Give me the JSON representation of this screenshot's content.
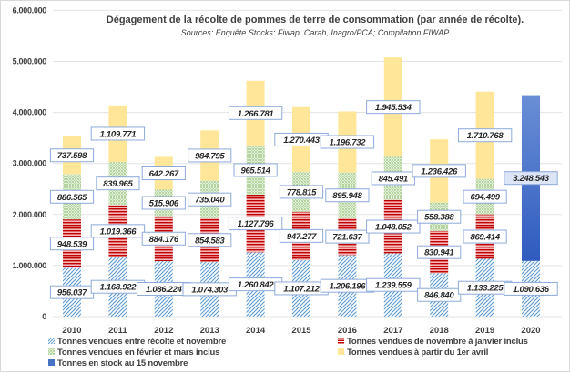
{
  "chart_data": {
    "type": "bar",
    "stacked": true,
    "title": "Dégagement de la récolte de pommes de terre de consommation (par année de récolte).",
    "subtitle": "Sources: Enquête Stocks: Fiwap, Carah, Inagro/PCA; Compilation FIWAP",
    "xlabel": "",
    "ylabel": "",
    "ylim": [
      0,
      6000000
    ],
    "yticks": [
      0,
      1000000,
      2000000,
      3000000,
      4000000,
      5000000,
      6000000
    ],
    "ytick_labels": [
      "0",
      "1.000.000",
      "2.000.000",
      "3.000.000",
      "4.000.000",
      "5.000.000",
      "6.000.000"
    ],
    "grid": true,
    "legend_position": "bottom",
    "categories": [
      "2010",
      "2011",
      "2012",
      "2013",
      "2014",
      "2015",
      "2016",
      "2017",
      "2018",
      "2019",
      "2020"
    ],
    "series": [
      {
        "name": "Tonnes vendues entre récolte et novembre",
        "color": "#5b9bd5",
        "pattern": "diagonal-hatch",
        "values": [
          956037,
          1168922,
          1086224,
          1074303,
          1260842,
          1107212,
          1206196,
          1239559,
          846840,
          1133225,
          1090636
        ],
        "labels": [
          "956.037",
          "1.168.922",
          "1.086.224",
          "1.074.303",
          "1.260.842",
          "1.107.212",
          "1.206.196",
          "1.239.559",
          "846.840",
          "1.133.225",
          "1.090.636"
        ]
      },
      {
        "name": "Tonnes vendues de novembre à janvier inclus",
        "color": "#c00000",
        "pattern": "horizontal-stripes",
        "values": [
          948539,
          1019366,
          884176,
          854583,
          1127796,
          947277,
          721637,
          1048052,
          830941,
          869414,
          null
        ],
        "labels": [
          "948.539",
          "1.019.366",
          "884.176",
          "854.583",
          "1.127.796",
          "947.277",
          "721.637",
          "1.048.052",
          "830.941",
          "869.414",
          null
        ]
      },
      {
        "name": "Tonnes vendues en février et mars inclus",
        "color": "#70ad47",
        "pattern": "dots",
        "values": [
          886565,
          839965,
          515906,
          735040,
          965514,
          778815,
          895948,
          845491,
          558388,
          694499,
          null
        ],
        "labels": [
          "886.565",
          "839.965",
          "515.906",
          "735.040",
          "965.514",
          "778.815",
          "895.948",
          "845.491",
          "558.388",
          "694.499",
          null
        ]
      },
      {
        "name": "Tonnes vendues à partir du 1er avril",
        "color": "#ffe699",
        "pattern": "solid",
        "values": [
          737598,
          1109771,
          642267,
          984795,
          1266781,
          1270443,
          1196732,
          1945534,
          1236426,
          1710768,
          null
        ],
        "labels": [
          "737.598",
          "1.109.771",
          "642.267",
          "984.795",
          "1.266.781",
          "1.270.443",
          "1.196.732",
          "1.945.534",
          "1.236.426",
          "1.710.768",
          null
        ]
      },
      {
        "name": "Tonnes en stock au 15 novembre",
        "color": "#4472c4",
        "pattern": "gradient",
        "values": [
          null,
          null,
          null,
          null,
          null,
          null,
          null,
          null,
          null,
          null,
          3248543
        ],
        "labels": [
          null,
          null,
          null,
          null,
          null,
          null,
          null,
          null,
          null,
          null,
          "3.248.543"
        ]
      }
    ]
  }
}
